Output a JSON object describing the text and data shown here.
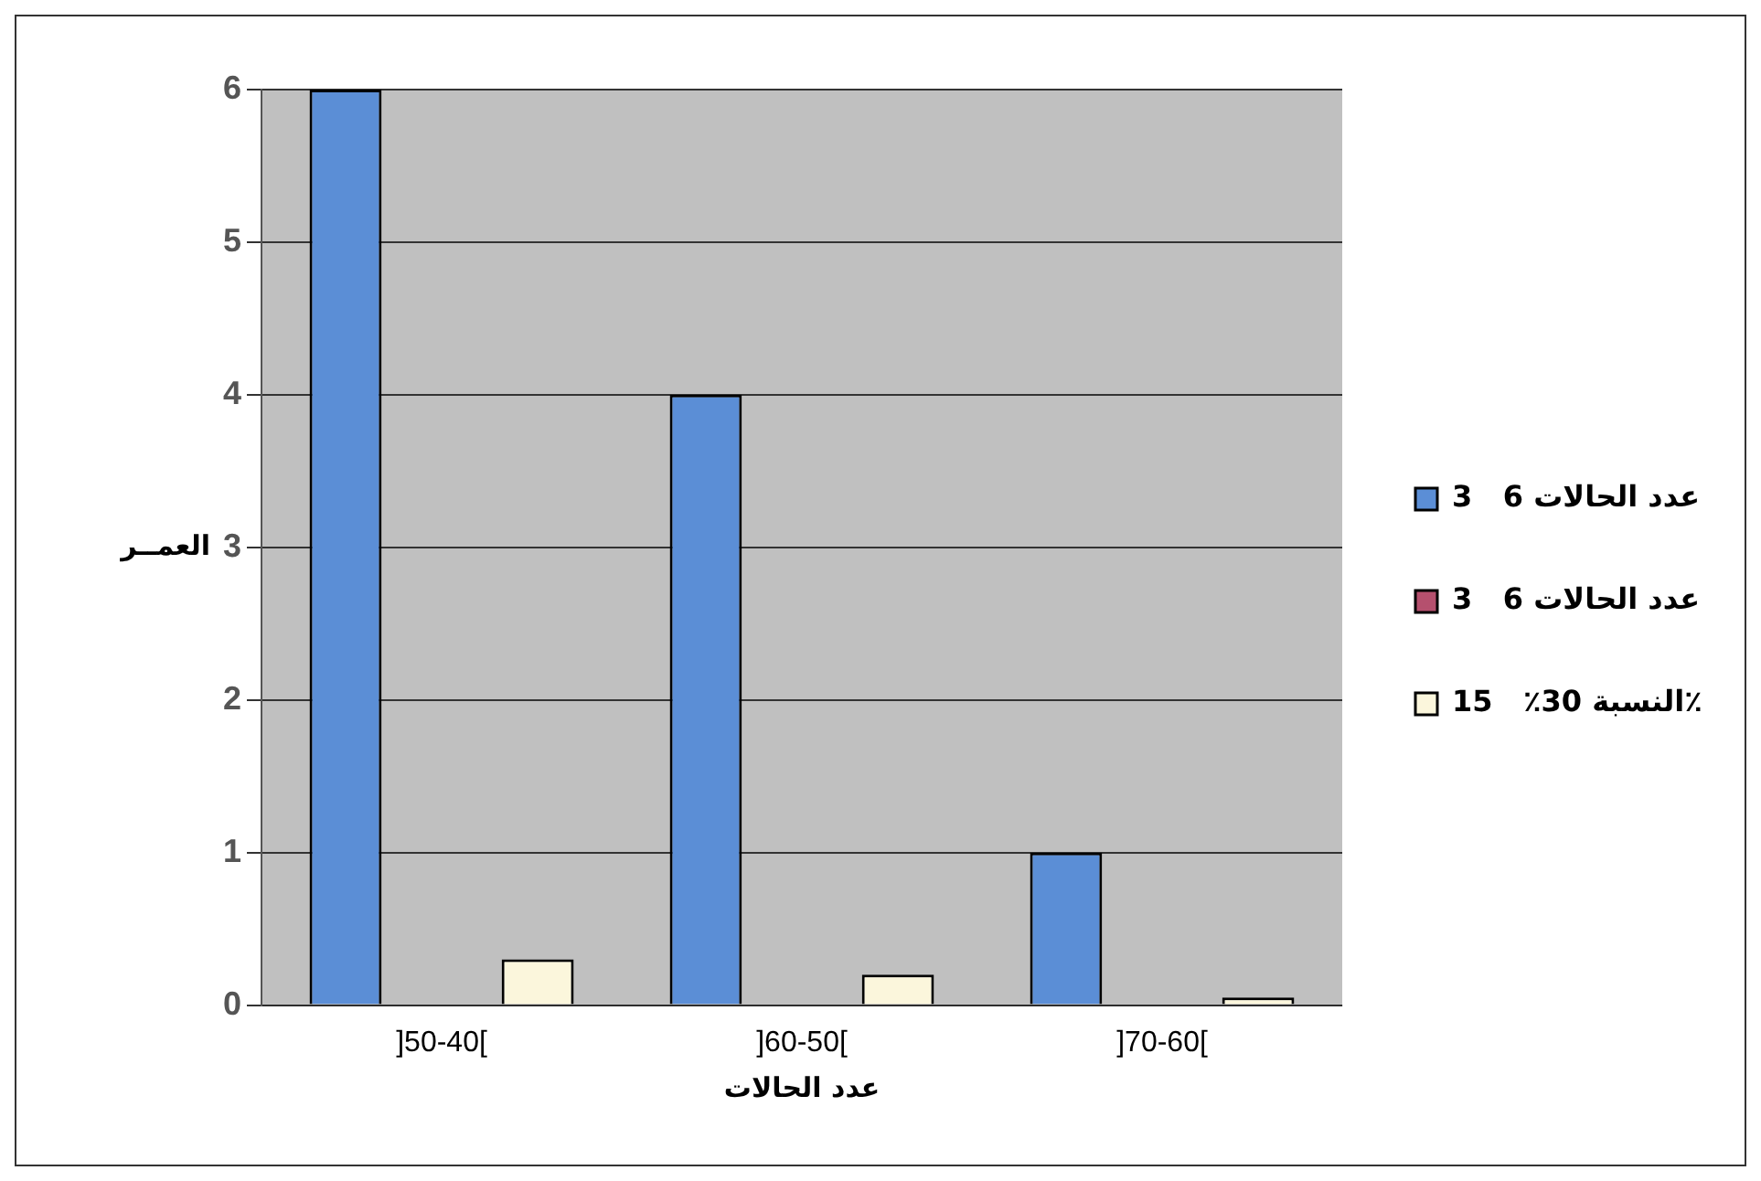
{
  "chart_data": {
    "type": "bar",
    "categories": [
      "]50-40[",
      "]60-50[",
      "]70-60["
    ],
    "series": [
      {
        "name": "عدد الحالات 6   3",
        "color": "#5b8ed6",
        "values": [
          6,
          4,
          1
        ]
      },
      {
        "name": "عدد الحالات 6   3",
        "color": "#b5506e",
        "values": [
          0,
          0,
          0
        ]
      },
      {
        "name": "النسبة 30٪   15٪",
        "color": "#fbf6dc",
        "values": [
          0.3,
          0.2,
          0.05
        ]
      }
    ],
    "xlabel": "عدد الحالات",
    "ylabel": "العمــر",
    "ylim": [
      0,
      6
    ],
    "yticks": [
      0,
      1,
      2,
      3,
      4,
      5,
      6
    ],
    "grid": "y",
    "legend": "right"
  }
}
